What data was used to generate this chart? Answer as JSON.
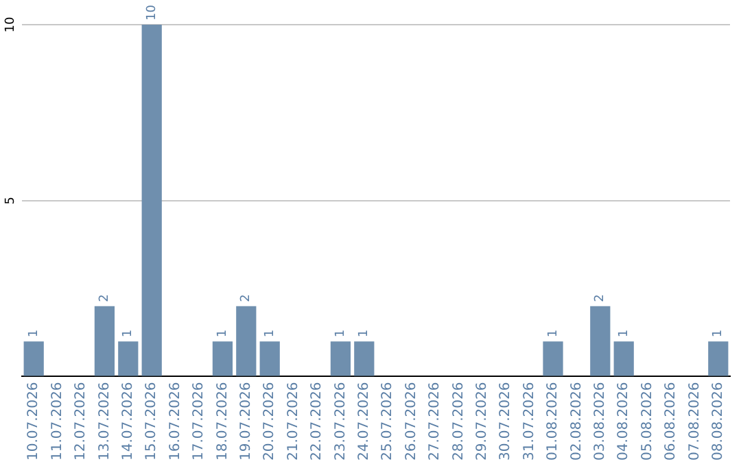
{
  "chart_data": {
    "type": "bar",
    "categories": [
      "10.07.2026",
      "11.07.2026",
      "12.07.2026",
      "13.07.2026",
      "14.07.2026",
      "15.07.2026",
      "16.07.2026",
      "17.07.2026",
      "18.07.2026",
      "19.07.2026",
      "20.07.2026",
      "21.07.2026",
      "22.07.2026",
      "23.07.2026",
      "24.07.2026",
      "25.07.2026",
      "26.07.2026",
      "27.07.2026",
      "28.07.2026",
      "29.07.2026",
      "30.07.2026",
      "31.07.2026",
      "01.08.2026",
      "02.08.2026",
      "03.08.2026",
      "04.08.2026",
      "05.08.2026",
      "06.08.2026",
      "07.08.2026",
      "08.08.2026"
    ],
    "values": [
      1,
      0,
      0,
      2,
      1,
      10,
      0,
      0,
      1,
      2,
      1,
      0,
      0,
      1,
      1,
      0,
      0,
      0,
      0,
      0,
      0,
      0,
      1,
      0,
      2,
      1,
      0,
      0,
      0,
      1
    ],
    "value_labels": [
      "1",
      null,
      null,
      "2",
      "1",
      "10",
      null,
      null,
      "1",
      "2",
      "1",
      null,
      null,
      "1",
      "1",
      null,
      null,
      null,
      null,
      null,
      null,
      null,
      "1",
      null,
      "2",
      "1",
      null,
      null,
      null,
      "1"
    ],
    "color": "#6f8fae",
    "ylim": [
      0,
      10
    ],
    "yticks": [
      {
        "value": 0,
        "label": null
      },
      5,
      10
    ],
    "grid": "y"
  }
}
